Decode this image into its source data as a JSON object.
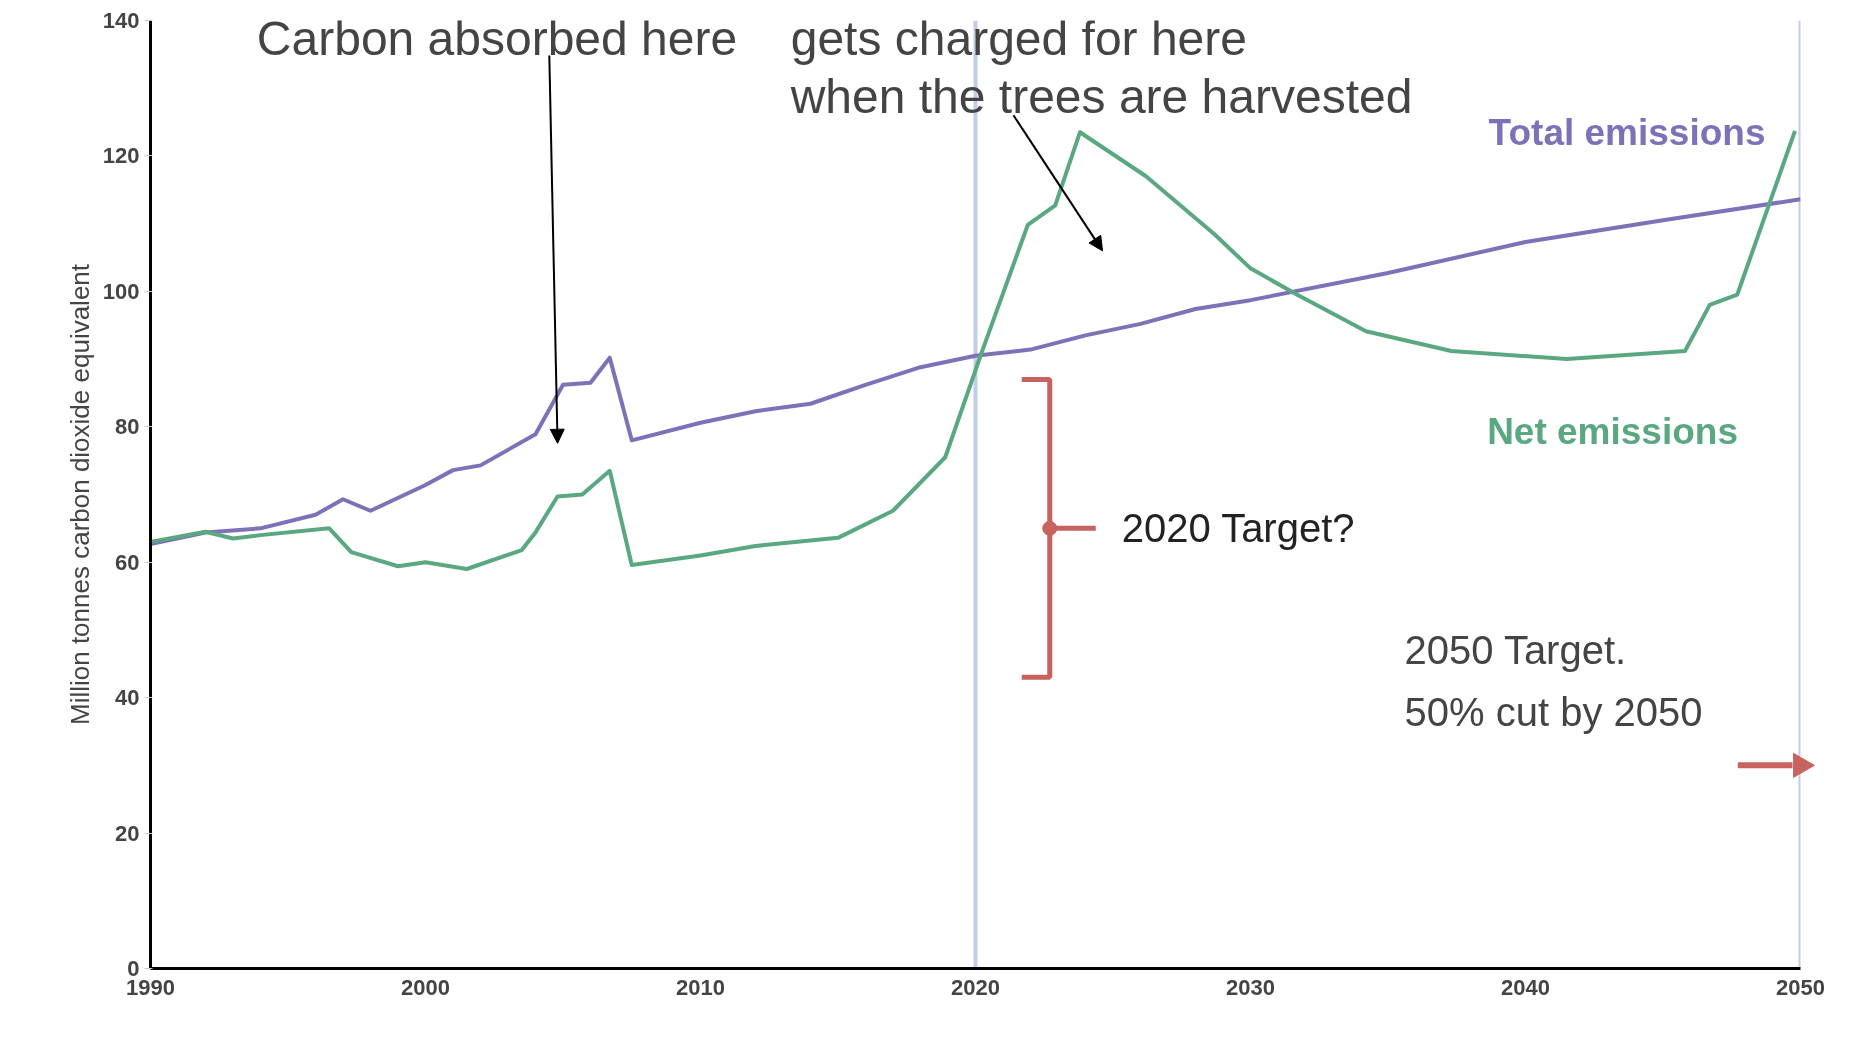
{
  "chart_data": {
    "type": "line",
    "ylabel": "Million tonnes carbon dioxide equivalent",
    "xlim": [
      1990,
      2050
    ],
    "ylim": [
      0,
      140
    ],
    "xticks": [
      1990,
      2000,
      2010,
      2020,
      2030,
      2040,
      2050
    ],
    "yticks": [
      0,
      20,
      40,
      60,
      80,
      100,
      120,
      140
    ],
    "grid": false,
    "series": [
      {
        "name": "Total emissions",
        "color": "#7d72b8",
        "x": [
          1990,
          1992,
          1994,
          1996,
          1997,
          1998,
          2000,
          2001,
          2002,
          2004,
          2005,
          2006,
          2006.7,
          2007.5,
          2010,
          2012,
          2014,
          2016,
          2018,
          2020,
          2022,
          2024,
          2026,
          2028,
          2030,
          2035,
          2040,
          2045,
          2050
        ],
        "values": [
          62.7,
          64.4,
          65,
          67,
          69.3,
          67.6,
          71.4,
          73.6,
          74.3,
          78.9,
          86.2,
          86.5,
          90.2,
          78,
          80.6,
          82.3,
          83.4,
          86.2,
          88.8,
          90.5,
          91.4,
          93.5,
          95.2,
          97.4,
          98.7,
          102.7,
          107.3,
          110.5,
          113.6
        ]
      },
      {
        "name": "2020 Target?",
        "type": "scatter",
        "color": "#c8625f",
        "x": [
          2022.7
        ],
        "values": [
          65
        ],
        "errors": [
          [
            43,
            87
          ]
        ]
      },
      {
        "type": "scatter",
        "marker": "triangle",
        "color": "#c8625f",
        "x": [
          2050
        ],
        "values": [
          30
        ]
      },
      {
        "name": "Net emissions",
        "color": "#5aa880",
        "x": [
          1990,
          1992,
          1993,
          1994,
          1996.5,
          1997.3,
          1999,
          2000,
          2001.5,
          2003.5,
          2004,
          2004.8,
          2005.7,
          2006.7,
          2007.5,
          2010,
          2012,
          2015,
          2017,
          2018.9,
          2020.2,
          2021.9,
          2022.9,
          2023.8,
          2026.2,
          2028.7,
          2030,
          2031.7,
          2034.2,
          2037.3,
          2041.5,
          2045.8,
          2046.7,
          2047.7,
          2049.8
        ],
        "values": [
          63,
          64.5,
          63.5,
          64,
          65,
          61.5,
          59.4,
          60,
          59,
          61.8,
          64.4,
          69.7,
          70,
          73.5,
          59.6,
          61,
          62.4,
          63.6,
          67.6,
          75.5,
          90.7,
          109.8,
          112.7,
          123.5,
          117,
          108.4,
          103.4,
          99.5,
          94.1,
          91.2,
          90,
          91.2,
          98,
          99.5,
          123.7
        ]
      }
    ],
    "ref_lines": [
      {
        "axis": "x",
        "value": 2020,
        "color": "#b4bfe2"
      },
      {
        "axis": "x",
        "value": 2050,
        "color": "#b4bfe2"
      }
    ],
    "annotations": [
      "Carbon absorbed here",
      "gets charged for here\nwhen the trees are harvested",
      {
        "text": "2050 Target.\n50% cut by 2050",
        "x": 2050,
        "y": 30
      }
    ]
  }
}
